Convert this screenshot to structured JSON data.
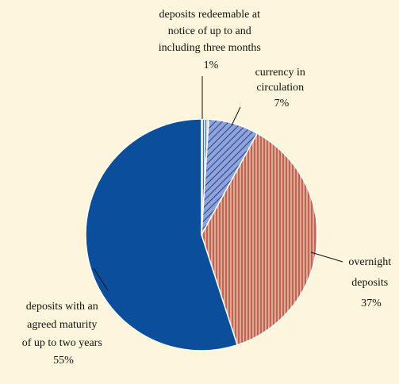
{
  "chart_data": {
    "type": "pie",
    "title": "",
    "start_angle_deg": 0,
    "direction": "clockwise",
    "slices": [
      {
        "label_lines": [
          "deposits redeemable at",
          "notice of up to and",
          "including three months"
        ],
        "value": 1,
        "value_label": "1%",
        "color": "#a9c6e2",
        "pattern": "vertical-hatch-fine"
      },
      {
        "label_lines": [
          "currency in",
          "circulation"
        ],
        "value": 7,
        "value_label": "7%",
        "color": "#8aa0d6",
        "pattern": "diagonal-hatch"
      },
      {
        "label_lines": [
          "overnight",
          "deposits"
        ],
        "value": 37,
        "value_label": "37%",
        "color": "#d98b7b",
        "pattern": "vertical-hatch"
      },
      {
        "label_lines": [
          "deposits with an",
          "agreed maturity",
          "of up to two years"
        ],
        "value": 55,
        "value_label": "55%",
        "color": "#0b4f9b",
        "pattern": "solid"
      }
    ]
  }
}
